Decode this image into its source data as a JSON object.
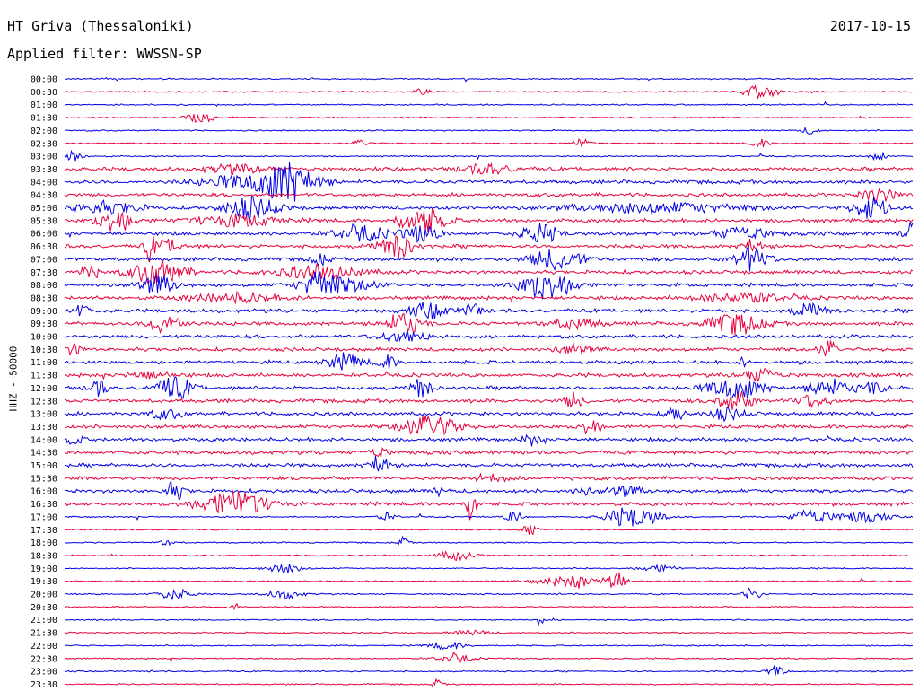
{
  "header": {
    "station": "HT Griva (Thessaloniki)",
    "date": "2017-10-15",
    "filter": "Applied filter: WWSSN-SP"
  },
  "chart_data": {
    "type": "line",
    "title": "HT Griva (Thessaloniki)",
    "ylabel": "HHZ - 50000",
    "colors": [
      "#0000e6",
      "#e6003c"
    ],
    "grid": false,
    "rows": [
      {
        "label": "00:00",
        "events": []
      },
      {
        "label": "00:30",
        "events": [
          [
            0.82,
            7,
            0.02
          ],
          [
            0.42,
            3,
            0.01
          ]
        ]
      },
      {
        "label": "01:00",
        "events": []
      },
      {
        "label": "01:30",
        "events": [
          [
            0.16,
            6,
            0.015
          ]
        ]
      },
      {
        "label": "02:00",
        "events": [
          [
            0.88,
            4,
            0.01
          ]
        ]
      },
      {
        "label": "02:30",
        "events": [
          [
            0.61,
            5,
            0.01
          ],
          [
            0.82,
            5,
            0.01
          ],
          [
            0.35,
            4,
            0.01
          ]
        ]
      },
      {
        "label": "03:00",
        "events": [
          [
            0.01,
            6,
            0.01
          ],
          [
            0.96,
            5,
            0.01
          ]
        ]
      },
      {
        "label": "03:30",
        "events": [
          [
            0.2,
            4,
            0.04
          ],
          [
            0.5,
            5,
            0.03
          ]
        ]
      },
      {
        "label": "04:00",
        "events": [
          [
            0.27,
            14,
            0.03
          ],
          [
            0.25,
            10,
            0.03
          ],
          [
            0.2,
            6,
            0.04
          ]
        ]
      },
      {
        "label": "04:30",
        "events": [
          [
            0.96,
            7,
            0.02
          ]
        ]
      },
      {
        "label": "05:00",
        "events": [
          [
            0.22,
            12,
            0.03
          ],
          [
            0.95,
            12,
            0.02
          ],
          [
            0.05,
            6,
            0.04
          ],
          [
            0.7,
            5,
            0.1
          ]
        ]
      },
      {
        "label": "05:30",
        "events": [
          [
            0.06,
            13,
            0.02
          ],
          [
            0.43,
            13,
            0.02
          ],
          [
            0.4,
            8,
            0.01
          ],
          [
            0.2,
            6,
            0.05
          ]
        ]
      },
      {
        "label": "06:00",
        "events": [
          [
            0.56,
            11,
            0.02
          ],
          [
            1.0,
            14,
            0.01
          ],
          [
            0.35,
            8,
            0.03
          ],
          [
            0.42,
            9,
            0.02
          ],
          [
            0.8,
            7,
            0.03
          ]
        ]
      },
      {
        "label": "06:30",
        "events": [
          [
            0.39,
            13,
            0.02
          ],
          [
            0.1,
            14,
            0.005
          ],
          [
            0.12,
            7,
            0.02
          ],
          [
            0.81,
            9,
            0.01
          ]
        ]
      },
      {
        "label": "07:00",
        "events": [
          [
            0.58,
            11,
            0.03
          ],
          [
            0.81,
            13,
            0.02
          ],
          [
            0.3,
            6,
            0.01
          ]
        ]
      },
      {
        "label": "07:30",
        "events": [
          [
            0.11,
            14,
            0.03
          ],
          [
            0.03,
            8,
            0.01
          ],
          [
            0.3,
            7,
            0.05
          ]
        ]
      },
      {
        "label": "08:00",
        "events": [
          [
            0.57,
            16,
            0.03
          ],
          [
            0.3,
            13,
            0.02
          ],
          [
            0.11,
            10,
            0.02
          ],
          [
            0.33,
            6,
            0.04
          ]
        ]
      },
      {
        "label": "08:30",
        "events": [
          [
            0.2,
            5,
            0.05
          ],
          [
            0.8,
            5,
            0.05
          ]
        ]
      },
      {
        "label": "09:00",
        "events": [
          [
            0.43,
            9,
            0.02
          ],
          [
            0.48,
            8,
            0.01
          ],
          [
            0.02,
            7,
            0.01
          ],
          [
            0.88,
            7,
            0.02
          ]
        ]
      },
      {
        "label": "09:30",
        "events": [
          [
            0.4,
            12,
            0.02
          ],
          [
            0.79,
            12,
            0.03
          ],
          [
            0.12,
            10,
            0.02
          ],
          [
            0.6,
            5,
            0.03
          ]
        ]
      },
      {
        "label": "10:00",
        "events": [
          [
            0.4,
            6,
            0.03
          ]
        ]
      },
      {
        "label": "10:30",
        "events": [
          [
            0.9,
            11,
            0.01
          ],
          [
            0.01,
            6,
            0.01
          ],
          [
            0.6,
            5,
            0.02
          ]
        ]
      },
      {
        "label": "11:00",
        "events": [
          [
            0.33,
            9,
            0.02
          ],
          [
            0.38,
            8,
            0.01
          ],
          [
            0.8,
            10,
            0.002
          ]
        ]
      },
      {
        "label": "11:30",
        "events": [
          [
            0.82,
            7,
            0.02
          ],
          [
            0.1,
            4,
            0.03
          ]
        ]
      },
      {
        "label": "12:00",
        "events": [
          [
            0.13,
            13,
            0.02
          ],
          [
            0.04,
            8,
            0.01
          ],
          [
            0.42,
            14,
            0.01
          ],
          [
            0.79,
            12,
            0.03
          ],
          [
            0.9,
            10,
            0.02
          ],
          [
            0.95,
            6,
            0.02
          ]
        ]
      },
      {
        "label": "12:30",
        "events": [
          [
            0.6,
            9,
            0.01
          ],
          [
            0.79,
            11,
            0.02
          ],
          [
            0.88,
            6,
            0.02
          ]
        ]
      },
      {
        "label": "13:00",
        "events": [
          [
            0.72,
            8,
            0.01
          ],
          [
            0.78,
            6,
            0.02
          ],
          [
            0.12,
            5,
            0.02
          ]
        ]
      },
      {
        "label": "13:30",
        "events": [
          [
            0.43,
            13,
            0.03
          ],
          [
            0.62,
            11,
            0.01
          ]
        ]
      },
      {
        "label": "14:00",
        "events": [
          [
            0.55,
            6,
            0.01
          ],
          [
            0.01,
            5,
            0.01
          ]
        ]
      },
      {
        "label": "14:30",
        "events": [
          [
            0.37,
            6,
            0.01
          ]
        ]
      },
      {
        "label": "15:00",
        "events": [
          [
            0.37,
            13,
            0.01
          ]
        ]
      },
      {
        "label": "15:30",
        "events": [
          [
            0.5,
            4,
            0.02
          ]
        ]
      },
      {
        "label": "16:00",
        "events": [
          [
            0.13,
            11,
            0.01
          ],
          [
            0.44,
            6,
            0.005
          ],
          [
            0.61,
            5,
            0.01
          ],
          [
            0.66,
            5,
            0.02
          ]
        ]
      },
      {
        "label": "16:30",
        "events": [
          [
            0.2,
            14,
            0.04
          ],
          [
            0.48,
            28,
            0.005
          ]
        ]
      },
      {
        "label": "17:00",
        "events": [
          [
            0.67,
            12,
            0.03
          ],
          [
            0.88,
            9,
            0.02
          ],
          [
            0.94,
            6,
            0.03
          ],
          [
            0.53,
            6,
            0.01
          ],
          [
            0.38,
            4,
            0.01
          ]
        ]
      },
      {
        "label": "17:30",
        "events": [
          [
            0.55,
            5,
            0.01
          ]
        ]
      },
      {
        "label": "18:00",
        "events": [
          [
            0.4,
            7,
            0.005
          ],
          [
            0.12,
            3,
            0.01
          ]
        ]
      },
      {
        "label": "18:30",
        "events": [
          [
            0.46,
            5,
            0.02
          ]
        ]
      },
      {
        "label": "19:00",
        "events": [
          [
            0.26,
            5,
            0.02
          ],
          [
            0.7,
            4,
            0.02
          ]
        ]
      },
      {
        "label": "19:30",
        "events": [
          [
            0.65,
            12,
            0.01
          ],
          [
            0.6,
            6,
            0.04
          ]
        ]
      },
      {
        "label": "20:00",
        "events": [
          [
            0.13,
            6,
            0.02
          ],
          [
            0.81,
            8,
            0.01
          ],
          [
            0.26,
            5,
            0.02
          ]
        ]
      },
      {
        "label": "20:30",
        "events": [
          [
            0.2,
            7,
            0.005
          ]
        ]
      },
      {
        "label": "21:00",
        "events": [
          [
            0.56,
            5,
            0.005
          ]
        ]
      },
      {
        "label": "21:30",
        "events": [
          [
            0.48,
            3,
            0.02
          ]
        ]
      },
      {
        "label": "22:00",
        "events": [
          [
            0.45,
            4,
            0.02
          ]
        ]
      },
      {
        "label": "22:30",
        "events": [
          [
            0.46,
            4,
            0.02
          ]
        ]
      },
      {
        "label": "23:00",
        "events": [
          [
            0.84,
            6,
            0.01
          ]
        ]
      },
      {
        "label": "23:30",
        "events": [
          [
            0.44,
            6,
            0.005
          ]
        ]
      }
    ]
  }
}
